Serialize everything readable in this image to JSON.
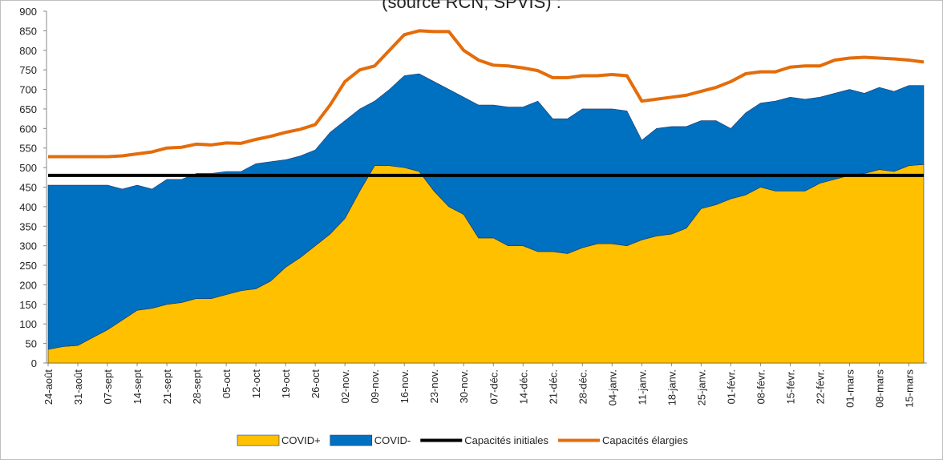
{
  "chart_data": {
    "type": "area",
    "title": "(source RCN, SPVIS) :",
    "categories": [
      "24-août",
      null,
      "31-août",
      null,
      "07-sept",
      null,
      "14-sept",
      null,
      "21-sept",
      null,
      "28-sept",
      null,
      "05-oct",
      null,
      "12-oct",
      null,
      "19-oct",
      null,
      "26-oct",
      null,
      "02-nov.",
      null,
      "09-nov.",
      null,
      "16-nov.",
      null,
      "23-nov.",
      null,
      "30-nov.",
      null,
      "07-déc.",
      null,
      "14-déc.",
      null,
      "21-déc.",
      null,
      "28-déc.",
      null,
      "04-janv.",
      null,
      "11-janv.",
      null,
      "18-janv.",
      null,
      "25-janv.",
      null,
      "01-févr.",
      null,
      "08-févr.",
      null,
      "15-févr.",
      null,
      "22-févr.",
      null,
      "01-mars",
      null,
      "08-mars",
      null,
      "15-mars",
      null
    ],
    "series": [
      {
        "name": "COVID+",
        "type": "area",
        "color": "#ffc000",
        "values": [
          35,
          42,
          45,
          65,
          85,
          110,
          135,
          140,
          150,
          155,
          165,
          165,
          175,
          185,
          190,
          210,
          245,
          270,
          300,
          330,
          370,
          440,
          505,
          505,
          500,
          490,
          440,
          400,
          380,
          320,
          320,
          300,
          300,
          285,
          285,
          280,
          295,
          305,
          305,
          300,
          315,
          325,
          330,
          345,
          395,
          405,
          420,
          430,
          450,
          440,
          440,
          440,
          460,
          470,
          480,
          485,
          495,
          490,
          505,
          508
        ]
      },
      {
        "name": "COVID-",
        "type": "area",
        "color": "#0070c0",
        "values": [
          420,
          413,
          410,
          390,
          370,
          335,
          320,
          305,
          320,
          315,
          320,
          320,
          315,
          305,
          320,
          305,
          275,
          260,
          245,
          260,
          250,
          210,
          165,
          195,
          235,
          250,
          280,
          300,
          300,
          340,
          340,
          355,
          355,
          385,
          340,
          345,
          355,
          345,
          345,
          345,
          255,
          275,
          275,
          260,
          225,
          215,
          180,
          210,
          215,
          230,
          240,
          235,
          220,
          220,
          220,
          205,
          210,
          205,
          205,
          202
        ]
      },
      {
        "name": "Capacités initiales",
        "type": "line",
        "color": "#000000",
        "values": [
          480,
          480,
          480,
          480,
          480,
          480,
          480,
          480,
          480,
          480,
          480,
          480,
          480,
          480,
          480,
          480,
          480,
          480,
          480,
          480,
          480,
          480,
          480,
          480,
          480,
          480,
          480,
          480,
          480,
          480,
          480,
          480,
          480,
          480,
          480,
          480,
          480,
          480,
          480,
          480,
          480,
          480,
          480,
          480,
          480,
          480,
          480,
          480,
          480,
          480,
          480,
          480,
          480,
          480,
          480,
          480,
          480,
          480,
          480,
          480
        ]
      },
      {
        "name": "Capacités élargies",
        "type": "line",
        "color": "#e46c0a",
        "values": [
          528,
          528,
          528,
          528,
          528,
          530,
          535,
          540,
          550,
          552,
          560,
          558,
          563,
          562,
          572,
          580,
          590,
          598,
          610,
          660,
          720,
          750,
          760,
          800,
          840,
          850,
          848,
          848,
          800,
          775,
          762,
          760,
          755,
          748,
          730,
          730,
          735,
          735,
          738,
          735,
          670,
          675,
          680,
          685,
          695,
          705,
          720,
          740,
          745,
          745,
          757,
          760,
          760,
          775,
          780,
          782,
          780,
          778,
          775,
          770
        ]
      }
    ],
    "ylim": [
      0,
      900
    ],
    "yticks": [
      0,
      50,
      100,
      150,
      200,
      250,
      300,
      350,
      400,
      450,
      500,
      550,
      600,
      650,
      700,
      750,
      800,
      850,
      900
    ],
    "grid": false
  }
}
